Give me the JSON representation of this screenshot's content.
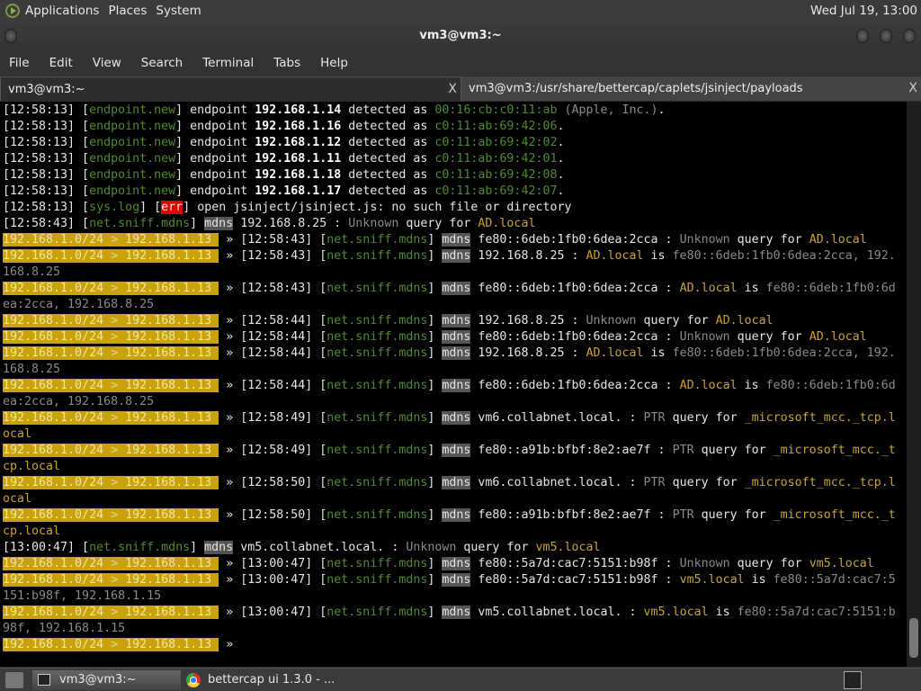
{
  "panel": {
    "menus": [
      "Applications",
      "Places",
      "System"
    ],
    "clock": "Wed Jul 19, 13:00"
  },
  "window": {
    "title": "vm3@vm3:~"
  },
  "menubar": [
    "File",
    "Edit",
    "View",
    "Search",
    "Terminal",
    "Tabs",
    "Help"
  ],
  "tabs": [
    {
      "label": "vm3@vm3:~",
      "close": "X"
    },
    {
      "label": "vm3@vm3:/usr/share/bettercap/caplets/jsinject/payloads",
      "close": "X"
    }
  ],
  "colors": {
    "prompt_bg": "#c9a20c",
    "module": "#4f8a2f",
    "highlight": "#c9a227",
    "error": "#dd0000"
  },
  "terminal": {
    "lines": [
      [
        [
          "w",
          "[12:58:13] ["
        ],
        [
          "g",
          "endpoint.new"
        ],
        [
          "w",
          "] endpoint "
        ],
        [
          "b",
          "192.168.1.14"
        ],
        [
          "w",
          " detected as "
        ],
        [
          "g",
          "00:16:cb:c0:11:ab"
        ],
        [
          "d",
          " (Apple, Inc.)"
        ],
        [
          "w",
          "."
        ]
      ],
      [
        [
          "w",
          "[12:58:13] ["
        ],
        [
          "g",
          "endpoint.new"
        ],
        [
          "w",
          "] endpoint "
        ],
        [
          "b",
          "192.168.1.16"
        ],
        [
          "w",
          " detected as "
        ],
        [
          "g",
          "c0:11:ab:69:42:06"
        ],
        [
          "w",
          "."
        ]
      ],
      [
        [
          "w",
          "[12:58:13] ["
        ],
        [
          "g",
          "endpoint.new"
        ],
        [
          "w",
          "] endpoint "
        ],
        [
          "b",
          "192.168.1.12"
        ],
        [
          "w",
          " detected as "
        ],
        [
          "g",
          "c0:11:ab:69:42:02"
        ],
        [
          "w",
          "."
        ]
      ],
      [
        [
          "w",
          "[12:58:13] ["
        ],
        [
          "g",
          "endpoint.new"
        ],
        [
          "w",
          "] endpoint "
        ],
        [
          "b",
          "192.168.1.11"
        ],
        [
          "w",
          " detected as "
        ],
        [
          "g",
          "c0:11:ab:69:42:01"
        ],
        [
          "w",
          "."
        ]
      ],
      [
        [
          "w",
          "[12:58:13] ["
        ],
        [
          "g",
          "endpoint.new"
        ],
        [
          "w",
          "] endpoint "
        ],
        [
          "b",
          "192.168.1.18"
        ],
        [
          "w",
          " detected as "
        ],
        [
          "g",
          "c0:11:ab:69:42:08"
        ],
        [
          "w",
          "."
        ]
      ],
      [
        [
          "w",
          "[12:58:13] ["
        ],
        [
          "g",
          "endpoint.new"
        ],
        [
          "w",
          "] endpoint "
        ],
        [
          "b",
          "192.168.1.17"
        ],
        [
          "w",
          " detected as "
        ],
        [
          "g",
          "c0:11:ab:69:42:07"
        ],
        [
          "w",
          "."
        ]
      ],
      [
        [
          "w",
          "[12:58:13] ["
        ],
        [
          "g",
          "sys.log"
        ],
        [
          "w",
          "] ["
        ],
        [
          "e",
          "err"
        ],
        [
          "w",
          "] open jsinject/jsinject.js: no such file or directory"
        ]
      ],
      [
        [
          "w",
          "[12:58:43] ["
        ],
        [
          "g",
          "net.sniff.mdns"
        ],
        [
          "w",
          "] "
        ],
        [
          "m",
          "mdns"
        ],
        [
          "w",
          " 192.168.8.25 : "
        ],
        [
          "d",
          "Unknown"
        ],
        [
          "w",
          " query for "
        ],
        [
          "y",
          "AD.local"
        ]
      ],
      [
        [
          "p",
          "192.168.1.0/24 "
        ],
        [
          "pd",
          ">"
        ],
        [
          "p",
          " 192.168.1.13 "
        ],
        [
          "w",
          " » [12:58:43] ["
        ],
        [
          "g",
          "net.sniff.mdns"
        ],
        [
          "w",
          "] "
        ],
        [
          "m",
          "mdns"
        ],
        [
          "w",
          " fe80::6deb:1fb0:6dea:2cca : "
        ],
        [
          "d",
          "Unknown"
        ],
        [
          "w",
          " query for "
        ],
        [
          "y",
          "AD.local"
        ]
      ],
      [
        [
          "p",
          "192.168.1.0/24 "
        ],
        [
          "pd",
          ">"
        ],
        [
          "p",
          " 192.168.1.13 "
        ],
        [
          "w",
          " » [12:58:43] ["
        ],
        [
          "g",
          "net.sniff.mdns"
        ],
        [
          "w",
          "] "
        ],
        [
          "m",
          "mdns"
        ],
        [
          "w",
          " 192.168.8.25 : "
        ],
        [
          "y",
          "AD.local"
        ],
        [
          "w",
          " is "
        ],
        [
          "d",
          "fe80::6deb:1fb0:6dea:2cca, 192.168.8.25"
        ]
      ],
      [
        [
          "p",
          "192.168.1.0/24 "
        ],
        [
          "pd",
          ">"
        ],
        [
          "p",
          " 192.168.1.13 "
        ],
        [
          "w",
          " » [12:58:43] ["
        ],
        [
          "g",
          "net.sniff.mdns"
        ],
        [
          "w",
          "] "
        ],
        [
          "m",
          "mdns"
        ],
        [
          "w",
          " fe80::6deb:1fb0:6dea:2cca : "
        ],
        [
          "y",
          "AD.local"
        ],
        [
          "w",
          " is "
        ],
        [
          "d",
          "fe80::6deb:1fb0:6dea:2cca, 192.168.8.25"
        ]
      ],
      [
        [
          "p",
          "192.168.1.0/24 "
        ],
        [
          "pd",
          ">"
        ],
        [
          "p",
          " 192.168.1.13 "
        ],
        [
          "w",
          " » [12:58:44] ["
        ],
        [
          "g",
          "net.sniff.mdns"
        ],
        [
          "w",
          "] "
        ],
        [
          "m",
          "mdns"
        ],
        [
          "w",
          " 192.168.8.25 : "
        ],
        [
          "d",
          "Unknown"
        ],
        [
          "w",
          " query for "
        ],
        [
          "y",
          "AD.local"
        ]
      ],
      [
        [
          "p",
          "192.168.1.0/24 "
        ],
        [
          "pd",
          ">"
        ],
        [
          "p",
          " 192.168.1.13 "
        ],
        [
          "w",
          " » [12:58:44] ["
        ],
        [
          "g",
          "net.sniff.mdns"
        ],
        [
          "w",
          "] "
        ],
        [
          "m",
          "mdns"
        ],
        [
          "w",
          " fe80::6deb:1fb0:6dea:2cca : "
        ],
        [
          "d",
          "Unknown"
        ],
        [
          "w",
          " query for "
        ],
        [
          "y",
          "AD.local"
        ]
      ],
      [
        [
          "p",
          "192.168.1.0/24 "
        ],
        [
          "pd",
          ">"
        ],
        [
          "p",
          " 192.168.1.13 "
        ],
        [
          "w",
          " » [12:58:44] ["
        ],
        [
          "g",
          "net.sniff.mdns"
        ],
        [
          "w",
          "] "
        ],
        [
          "m",
          "mdns"
        ],
        [
          "w",
          " 192.168.8.25 : "
        ],
        [
          "y",
          "AD.local"
        ],
        [
          "w",
          " is "
        ],
        [
          "d",
          "fe80::6deb:1fb0:6dea:2cca, 192.168.8.25"
        ]
      ],
      [
        [
          "p",
          "192.168.1.0/24 "
        ],
        [
          "pd",
          ">"
        ],
        [
          "p",
          " 192.168.1.13 "
        ],
        [
          "w",
          " » [12:58:44] ["
        ],
        [
          "g",
          "net.sniff.mdns"
        ],
        [
          "w",
          "] "
        ],
        [
          "m",
          "mdns"
        ],
        [
          "w",
          " fe80::6deb:1fb0:6dea:2cca : "
        ],
        [
          "y",
          "AD.local"
        ],
        [
          "w",
          " is "
        ],
        [
          "d",
          "fe80::6deb:1fb0:6dea:2cca, 192.168.8.25"
        ]
      ],
      [
        [
          "p",
          "192.168.1.0/24 "
        ],
        [
          "pd",
          ">"
        ],
        [
          "p",
          " 192.168.1.13 "
        ],
        [
          "w",
          " » [12:58:49] ["
        ],
        [
          "g",
          "net.sniff.mdns"
        ],
        [
          "w",
          "] "
        ],
        [
          "m",
          "mdns"
        ],
        [
          "w",
          " vm6.collabnet.local. : "
        ],
        [
          "d",
          "PTR"
        ],
        [
          "w",
          " query for "
        ],
        [
          "y",
          "_microsoft_mcc._tcp.local"
        ]
      ],
      [
        [
          "p",
          "192.168.1.0/24 "
        ],
        [
          "pd",
          ">"
        ],
        [
          "p",
          " 192.168.1.13 "
        ],
        [
          "w",
          " » [12:58:49] ["
        ],
        [
          "g",
          "net.sniff.mdns"
        ],
        [
          "w",
          "] "
        ],
        [
          "m",
          "mdns"
        ],
        [
          "w",
          " fe80::a91b:bfbf:8e2:ae7f : "
        ],
        [
          "d",
          "PTR"
        ],
        [
          "w",
          " query for "
        ],
        [
          "y",
          "_microsoft_mcc._tcp.local"
        ]
      ],
      [
        [
          "p",
          "192.168.1.0/24 "
        ],
        [
          "pd",
          ">"
        ],
        [
          "p",
          " 192.168.1.13 "
        ],
        [
          "w",
          " » [12:58:50] ["
        ],
        [
          "g",
          "net.sniff.mdns"
        ],
        [
          "w",
          "] "
        ],
        [
          "m",
          "mdns"
        ],
        [
          "w",
          " vm6.collabnet.local. : "
        ],
        [
          "d",
          "PTR"
        ],
        [
          "w",
          " query for "
        ],
        [
          "y",
          "_microsoft_mcc._tcp.local"
        ]
      ],
      [
        [
          "p",
          "192.168.1.0/24 "
        ],
        [
          "pd",
          ">"
        ],
        [
          "p",
          " 192.168.1.13 "
        ],
        [
          "w",
          " » [12:58:50] ["
        ],
        [
          "g",
          "net.sniff.mdns"
        ],
        [
          "w",
          "] "
        ],
        [
          "m",
          "mdns"
        ],
        [
          "w",
          " fe80::a91b:bfbf:8e2:ae7f : "
        ],
        [
          "d",
          "PTR"
        ],
        [
          "w",
          " query for "
        ],
        [
          "y",
          "_microsoft_mcc._tcp.local"
        ]
      ],
      [
        [
          "w",
          "[13:00:47] ["
        ],
        [
          "g",
          "net.sniff.mdns"
        ],
        [
          "w",
          "] "
        ],
        [
          "m",
          "mdns"
        ],
        [
          "w",
          " vm5.collabnet.local. : "
        ],
        [
          "d",
          "Unknown"
        ],
        [
          "w",
          " query for "
        ],
        [
          "y",
          "vm5.local"
        ]
      ],
      [
        [
          "p",
          "192.168.1.0/24 "
        ],
        [
          "pd",
          ">"
        ],
        [
          "p",
          " 192.168.1.13 "
        ],
        [
          "w",
          " » [13:00:47] ["
        ],
        [
          "g",
          "net.sniff.mdns"
        ],
        [
          "w",
          "] "
        ],
        [
          "m",
          "mdns"
        ],
        [
          "w",
          " fe80::5a7d:cac7:5151:b98f : "
        ],
        [
          "d",
          "Unknown"
        ],
        [
          "w",
          " query for "
        ],
        [
          "y",
          "vm5.local"
        ]
      ],
      [
        [
          "p",
          "192.168.1.0/24 "
        ],
        [
          "pd",
          ">"
        ],
        [
          "p",
          " 192.168.1.13 "
        ],
        [
          "w",
          " » [13:00:47] ["
        ],
        [
          "g",
          "net.sniff.mdns"
        ],
        [
          "w",
          "] "
        ],
        [
          "m",
          "mdns"
        ],
        [
          "w",
          " fe80::5a7d:cac7:5151:b98f : "
        ],
        [
          "y",
          "vm5.local"
        ],
        [
          "w",
          " is "
        ],
        [
          "d",
          "fe80::5a7d:cac7:5151:b98f, 192.168.1.15"
        ]
      ],
      [
        [
          "p",
          "192.168.1.0/24 "
        ],
        [
          "pd",
          ">"
        ],
        [
          "p",
          " 192.168.1.13 "
        ],
        [
          "w",
          " » [13:00:47] ["
        ],
        [
          "g",
          "net.sniff.mdns"
        ],
        [
          "w",
          "] "
        ],
        [
          "m",
          "mdns"
        ],
        [
          "w",
          " vm5.collabnet.local. : "
        ],
        [
          "y",
          "vm5.local"
        ],
        [
          "w",
          " is "
        ],
        [
          "d",
          "fe80::5a7d:cac7:5151:b98f, 192.168.1.15"
        ]
      ],
      [
        [
          "p",
          "192.168.1.0/24 "
        ],
        [
          "pd",
          ">"
        ],
        [
          "p",
          " 192.168.1.13 "
        ],
        [
          "w",
          " »"
        ]
      ]
    ]
  },
  "taskbar": {
    "items": [
      "vm3@vm3:~",
      "bettercap ui 1.3.0 - ..."
    ]
  }
}
